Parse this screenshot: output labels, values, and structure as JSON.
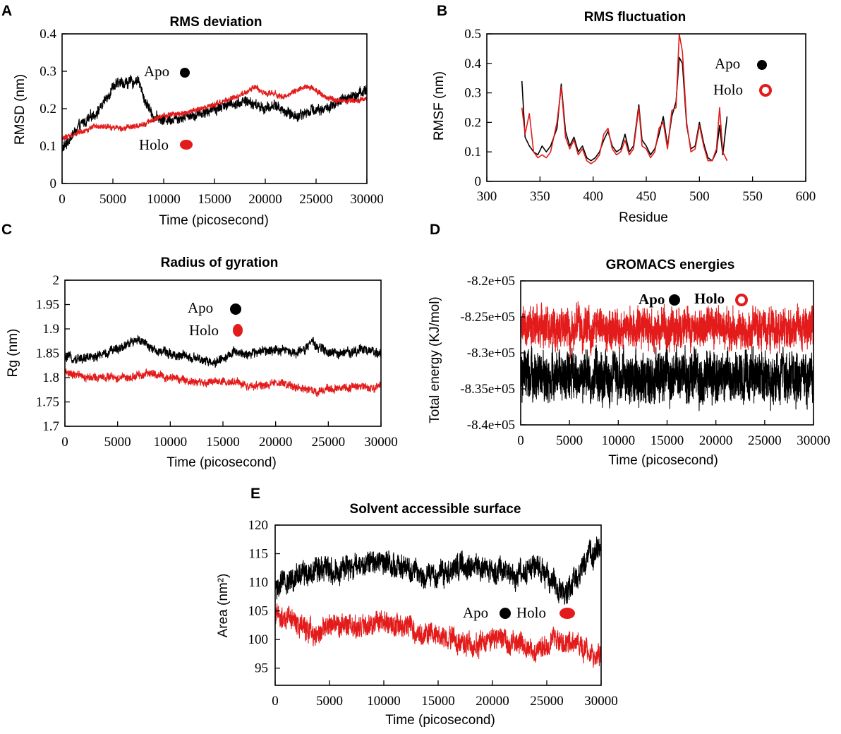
{
  "figure": {
    "colors": {
      "apo": "#000000",
      "holo": "#e31b1b"
    }
  },
  "chart_data": [
    {
      "id": "A",
      "letter": "A",
      "type": "line",
      "title": "RMS deviation",
      "xlabel": "Time (picosecond)",
      "ylabel": "RMSD (nm)",
      "xlim": [
        0,
        30000
      ],
      "ylim": [
        0,
        0.4
      ],
      "xticks": [
        0,
        5000,
        10000,
        15000,
        20000,
        25000,
        30000
      ],
      "xtick_labels": [
        "0",
        "5000",
        "10000",
        "15000",
        "20000",
        "25000",
        "30000"
      ],
      "yticks": [
        0,
        0.1,
        0.2,
        0.3,
        0.4
      ],
      "ytick_labels": [
        "0",
        "0.1",
        "0.2",
        "0.3",
        "0.4"
      ],
      "legend": [
        {
          "label": "Apo",
          "color": "#000000",
          "marker": "filled"
        },
        {
          "label": "Holo",
          "color": "#e31b1b",
          "marker": "filled"
        }
      ],
      "series": [
        {
          "name": "Apo",
          "color": "#000000",
          "x": [
            0,
            1000,
            2000,
            3000,
            4000,
            5000,
            6000,
            7000,
            7500,
            8000,
            9000,
            10000,
            12000,
            14000,
            16000,
            18000,
            19000,
            20000,
            21000,
            22000,
            23000,
            24000,
            25000,
            26000,
            27000,
            28000,
            29000,
            30000
          ],
          "y": [
            0.09,
            0.13,
            0.16,
            0.18,
            0.21,
            0.26,
            0.27,
            0.27,
            0.28,
            0.23,
            0.18,
            0.17,
            0.18,
            0.19,
            0.21,
            0.22,
            0.21,
            0.2,
            0.21,
            0.19,
            0.18,
            0.19,
            0.2,
            0.2,
            0.21,
            0.23,
            0.24,
            0.25
          ],
          "noise": 0.012
        },
        {
          "name": "Holo",
          "color": "#e31b1b",
          "x": [
            0,
            1000,
            2000,
            3000,
            4000,
            5000,
            6000,
            7000,
            8000,
            9000,
            10000,
            12000,
            14000,
            16000,
            17000,
            18000,
            19000,
            20000,
            21000,
            22000,
            23000,
            24000,
            25000,
            26000,
            27000,
            28000,
            29000,
            30000
          ],
          "y": [
            0.12,
            0.13,
            0.14,
            0.15,
            0.15,
            0.15,
            0.15,
            0.15,
            0.16,
            0.17,
            0.18,
            0.19,
            0.2,
            0.22,
            0.23,
            0.24,
            0.26,
            0.24,
            0.24,
            0.23,
            0.25,
            0.26,
            0.25,
            0.23,
            0.22,
            0.22,
            0.22,
            0.23
          ],
          "noise": 0.006
        }
      ]
    },
    {
      "id": "B",
      "letter": "B",
      "type": "line",
      "title": "RMS fluctuation",
      "xlabel": "Residue",
      "ylabel": "RMSF (nm)",
      "xlim": [
        300,
        600
      ],
      "ylim": [
        0,
        0.5
      ],
      "xticks": [
        300,
        350,
        400,
        450,
        500,
        550,
        600
      ],
      "xtick_labels": [
        "300",
        "350",
        "400",
        "450",
        "500",
        "550",
        "600"
      ],
      "yticks": [
        0,
        0.1,
        0.2,
        0.3,
        0.4,
        0.5
      ],
      "ytick_labels": [
        "0",
        "0.1",
        "0.2",
        "0.3",
        "0.4",
        "0.5"
      ],
      "legend": [
        {
          "label": "Apo",
          "color": "#000000",
          "marker": "filled"
        },
        {
          "label": "Holo",
          "color": "#e31b1b",
          "marker": "ring"
        }
      ],
      "series": [
        {
          "name": "Apo",
          "color": "#000000",
          "x": [
            333,
            336,
            340,
            344,
            348,
            352,
            356,
            360,
            366,
            370,
            374,
            378,
            382,
            386,
            390,
            394,
            398,
            402,
            406,
            410,
            414,
            418,
            422,
            426,
            430,
            434,
            438,
            443,
            446,
            450,
            454,
            458,
            462,
            466,
            470,
            474,
            478,
            481,
            484,
            488,
            492,
            496,
            500,
            504,
            508,
            512,
            516,
            519,
            522,
            526
          ],
          "y": [
            0.34,
            0.15,
            0.12,
            0.1,
            0.09,
            0.12,
            0.1,
            0.12,
            0.18,
            0.33,
            0.17,
            0.12,
            0.15,
            0.1,
            0.12,
            0.08,
            0.07,
            0.08,
            0.1,
            0.14,
            0.17,
            0.12,
            0.1,
            0.11,
            0.16,
            0.1,
            0.12,
            0.26,
            0.14,
            0.12,
            0.09,
            0.11,
            0.16,
            0.22,
            0.12,
            0.22,
            0.27,
            0.42,
            0.4,
            0.19,
            0.11,
            0.12,
            0.2,
            0.13,
            0.08,
            0.07,
            0.1,
            0.19,
            0.09,
            0.22
          ]
        },
        {
          "name": "Holo",
          "color": "#e31b1b",
          "x": [
            333,
            336,
            340,
            344,
            348,
            352,
            356,
            360,
            366,
            370,
            374,
            378,
            382,
            386,
            390,
            394,
            398,
            402,
            406,
            410,
            414,
            418,
            422,
            426,
            430,
            434,
            438,
            443,
            446,
            450,
            454,
            458,
            462,
            466,
            470,
            474,
            478,
            481,
            484,
            488,
            492,
            496,
            500,
            504,
            508,
            512,
            516,
            519,
            522,
            526
          ],
          "y": [
            0.25,
            0.16,
            0.23,
            0.1,
            0.08,
            0.09,
            0.08,
            0.1,
            0.2,
            0.32,
            0.15,
            0.11,
            0.14,
            0.09,
            0.11,
            0.07,
            0.06,
            0.07,
            0.09,
            0.16,
            0.18,
            0.11,
            0.09,
            0.1,
            0.14,
            0.09,
            0.11,
            0.25,
            0.12,
            0.11,
            0.08,
            0.1,
            0.18,
            0.2,
            0.11,
            0.24,
            0.25,
            0.5,
            0.44,
            0.2,
            0.1,
            0.11,
            0.19,
            0.12,
            0.07,
            0.07,
            0.11,
            0.25,
            0.1,
            0.07
          ]
        }
      ]
    },
    {
      "id": "C",
      "letter": "C",
      "type": "line",
      "title": "Radius of gyration",
      "xlabel": "Time (picosecond)",
      "ylabel": "Rg (nm)",
      "xlim": [
        0,
        30000
      ],
      "ylim": [
        1.7,
        2.0
      ],
      "xticks": [
        0,
        5000,
        10000,
        15000,
        20000,
        25000,
        30000
      ],
      "xtick_labels": [
        "0",
        "5000",
        "10000",
        "15000",
        "20000",
        "25000",
        "30000"
      ],
      "yticks": [
        1.7,
        1.75,
        1.8,
        1.85,
        1.9,
        1.95,
        2.0
      ],
      "ytick_labels": [
        "1.7",
        "1.75",
        "1.8",
        "1.85",
        "1.9",
        "1.95",
        "2"
      ],
      "legend": [
        {
          "label": "Apo",
          "color": "#000000",
          "marker": "filled"
        },
        {
          "label": "Holo",
          "color": "#e31b1b",
          "marker": "filled"
        }
      ],
      "series": [
        {
          "name": "Apo",
          "color": "#000000",
          "x": [
            0,
            2000,
            4000,
            6000,
            7000,
            8000,
            10000,
            12000,
            14000,
            15000,
            16000,
            18000,
            20000,
            22000,
            23500,
            25000,
            27000,
            28000,
            30000
          ],
          "y": [
            1.84,
            1.84,
            1.85,
            1.87,
            1.88,
            1.86,
            1.85,
            1.84,
            1.83,
            1.84,
            1.85,
            1.85,
            1.86,
            1.85,
            1.87,
            1.85,
            1.85,
            1.86,
            1.85
          ],
          "noise": 0.008
        },
        {
          "name": "Holo",
          "color": "#e31b1b",
          "x": [
            0,
            2000,
            4000,
            6000,
            8000,
            10000,
            12000,
            14000,
            16000,
            18000,
            20000,
            22000,
            24000,
            26000,
            28000,
            30000
          ],
          "y": [
            1.81,
            1.8,
            1.8,
            1.8,
            1.81,
            1.8,
            1.79,
            1.79,
            1.79,
            1.78,
            1.79,
            1.78,
            1.77,
            1.78,
            1.78,
            1.78
          ],
          "noise": 0.007
        }
      ]
    },
    {
      "id": "D",
      "letter": "D",
      "type": "line",
      "title": "GROMACS energies",
      "xlabel": "Time (picosecond)",
      "ylabel": "Total energy (KJ/mol)",
      "xlim": [
        0,
        30000
      ],
      "ylim": [
        -840000,
        -820000
      ],
      "xticks": [
        0,
        5000,
        10000,
        15000,
        20000,
        25000,
        30000
      ],
      "xtick_labels": [
        "0",
        "5000",
        "10000",
        "15000",
        "20000",
        "25000",
        "30000"
      ],
      "yticks": [
        -840000,
        -835000,
        -830000,
        -825000,
        -820000
      ],
      "ytick_labels": [
        "-8.4e+05",
        "-8.35e+05",
        "-8.3e+05",
        "-8.25e+05",
        "-8.2e+05"
      ],
      "legend": [
        {
          "label": "Apo",
          "color": "#000000",
          "marker": "filled"
        },
        {
          "label": "Holo",
          "color": "#e31b1b",
          "marker": "ring"
        }
      ],
      "series": [
        {
          "name": "Apo",
          "color": "#000000",
          "x": [
            0,
            30000
          ],
          "y": [
            -833500,
            -833500
          ],
          "noise": 2800
        },
        {
          "name": "Holo",
          "color": "#e31b1b",
          "x": [
            0,
            30000
          ],
          "y": [
            -826500,
            -826500
          ],
          "noise": 2200
        }
      ]
    },
    {
      "id": "E",
      "letter": "E",
      "type": "line",
      "title": "Solvent accessible surface",
      "xlabel": "Time (picosecond)",
      "ylabel": "Area (nm²)",
      "xlim": [
        0,
        30000
      ],
      "ylim": [
        92,
        120
      ],
      "xticks": [
        0,
        5000,
        10000,
        15000,
        20000,
        25000,
        30000
      ],
      "xtick_labels": [
        "0",
        "5000",
        "10000",
        "15000",
        "20000",
        "25000",
        "30000"
      ],
      "yticks": [
        95,
        100,
        105,
        110,
        115,
        120
      ],
      "ytick_labels": [
        "95",
        "100",
        "105",
        "110",
        "115",
        "120"
      ],
      "legend": [
        {
          "label": "Apo",
          "color": "#000000",
          "marker": "filled"
        },
        {
          "label": "Holo",
          "color": "#e31b1b",
          "marker": "filled"
        }
      ],
      "series": [
        {
          "name": "Apo",
          "color": "#000000",
          "x": [
            0,
            2000,
            4000,
            6000,
            8000,
            10000,
            12000,
            14000,
            16000,
            18000,
            20000,
            22000,
            24000,
            26000,
            27000,
            28000,
            29000,
            30000
          ],
          "y": [
            109,
            111,
            113,
            112,
            113,
            114,
            112,
            111,
            112,
            113,
            112,
            111,
            113,
            109,
            108,
            112,
            115,
            116
          ],
          "noise": 1.8
        },
        {
          "name": "Holo",
          "color": "#e31b1b",
          "x": [
            0,
            2000,
            4000,
            6000,
            8000,
            10000,
            12000,
            14000,
            16000,
            18000,
            20000,
            22000,
            24000,
            26000,
            28000,
            30000
          ],
          "y": [
            104,
            103,
            101,
            103,
            102,
            103,
            102,
            101,
            100,
            99,
            100,
            100,
            98,
            100,
            99,
            97
          ],
          "noise": 1.6
        }
      ]
    }
  ]
}
